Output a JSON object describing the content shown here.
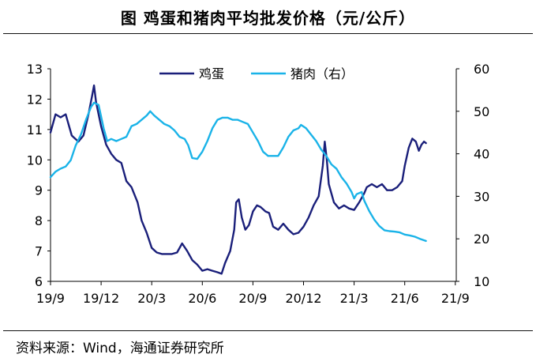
{
  "chart_data": {
    "type": "line",
    "title": "图  鸡蛋和猪肉平均批发价格（元/公斤）",
    "x_ticks": [
      "19/9",
      "19/12",
      "20/3",
      "20/6",
      "20/9",
      "20/12",
      "21/3",
      "21/6",
      "21/9"
    ],
    "y_left": {
      "ticks": [
        6,
        7,
        8,
        9,
        10,
        11,
        12,
        13
      ],
      "range": [
        6,
        13
      ]
    },
    "y_right": {
      "ticks": [
        10,
        20,
        30,
        40,
        50,
        60
      ],
      "range": [
        10,
        60
      ]
    },
    "legend_position": "top-center",
    "series": [
      {
        "name": "鸡蛋",
        "axis": "left",
        "color": "#1a1f7a",
        "points": [
          [
            0.0,
            10.9
          ],
          [
            0.1,
            11.5
          ],
          [
            0.2,
            11.4
          ],
          [
            0.3,
            11.5
          ],
          [
            0.42,
            10.8
          ],
          [
            0.55,
            10.6
          ],
          [
            0.65,
            10.8
          ],
          [
            0.75,
            11.5
          ],
          [
            0.82,
            12.1
          ],
          [
            0.86,
            12.45
          ],
          [
            0.9,
            11.9
          ],
          [
            1.0,
            11.1
          ],
          [
            1.1,
            10.5
          ],
          [
            1.2,
            10.2
          ],
          [
            1.3,
            10.0
          ],
          [
            1.4,
            9.9
          ],
          [
            1.5,
            9.3
          ],
          [
            1.6,
            9.1
          ],
          [
            1.72,
            8.6
          ],
          [
            1.8,
            8.0
          ],
          [
            1.9,
            7.6
          ],
          [
            2.0,
            7.1
          ],
          [
            2.1,
            6.95
          ],
          [
            2.2,
            6.9
          ],
          [
            2.3,
            6.9
          ],
          [
            2.4,
            6.9
          ],
          [
            2.5,
            6.95
          ],
          [
            2.6,
            7.25
          ],
          [
            2.7,
            7.0
          ],
          [
            2.8,
            6.7
          ],
          [
            2.9,
            6.55
          ],
          [
            3.0,
            6.35
          ],
          [
            3.1,
            6.4
          ],
          [
            3.2,
            6.35
          ],
          [
            3.3,
            6.3
          ],
          [
            3.38,
            6.25
          ],
          [
            3.45,
            6.6
          ],
          [
            3.55,
            7.0
          ],
          [
            3.63,
            7.7
          ],
          [
            3.67,
            8.6
          ],
          [
            3.72,
            8.7
          ],
          [
            3.78,
            8.1
          ],
          [
            3.85,
            7.7
          ],
          [
            3.92,
            7.85
          ],
          [
            4.0,
            8.3
          ],
          [
            4.08,
            8.5
          ],
          [
            4.15,
            8.45
          ],
          [
            4.25,
            8.3
          ],
          [
            4.32,
            8.25
          ],
          [
            4.4,
            7.8
          ],
          [
            4.5,
            7.7
          ],
          [
            4.6,
            7.9
          ],
          [
            4.7,
            7.7
          ],
          [
            4.8,
            7.55
          ],
          [
            4.9,
            7.6
          ],
          [
            5.0,
            7.8
          ],
          [
            5.1,
            8.1
          ],
          [
            5.2,
            8.5
          ],
          [
            5.3,
            8.8
          ],
          [
            5.38,
            9.8
          ],
          [
            5.42,
            10.6
          ],
          [
            5.46,
            10.0
          ],
          [
            5.5,
            9.2
          ],
          [
            5.6,
            8.6
          ],
          [
            5.7,
            8.4
          ],
          [
            5.8,
            8.5
          ],
          [
            5.9,
            8.4
          ],
          [
            6.0,
            8.35
          ],
          [
            6.1,
            8.6
          ],
          [
            6.2,
            8.9
          ],
          [
            6.25,
            9.1
          ],
          [
            6.35,
            9.2
          ],
          [
            6.45,
            9.1
          ],
          [
            6.55,
            9.2
          ],
          [
            6.65,
            9.0
          ],
          [
            6.75,
            9.0
          ],
          [
            6.85,
            9.1
          ],
          [
            6.95,
            9.3
          ],
          [
            7.0,
            9.8
          ],
          [
            7.08,
            10.4
          ],
          [
            7.15,
            10.7
          ],
          [
            7.22,
            10.6
          ],
          [
            7.28,
            10.3
          ],
          [
            7.33,
            10.5
          ],
          [
            7.38,
            10.6
          ],
          [
            7.42,
            10.55
          ]
        ]
      },
      {
        "name": "猪肉（右）",
        "axis": "right",
        "color": "#1ab3e8",
        "points": [
          [
            0.0,
            34.5
          ],
          [
            0.1,
            35.8
          ],
          [
            0.2,
            36.5
          ],
          [
            0.3,
            37.0
          ],
          [
            0.4,
            38.5
          ],
          [
            0.5,
            42.0
          ],
          [
            0.6,
            44.5
          ],
          [
            0.7,
            48.0
          ],
          [
            0.8,
            51.0
          ],
          [
            0.86,
            52.0
          ],
          [
            0.95,
            51.5
          ],
          [
            1.05,
            46.0
          ],
          [
            1.12,
            43.0
          ],
          [
            1.2,
            43.5
          ],
          [
            1.3,
            43.0
          ],
          [
            1.4,
            43.5
          ],
          [
            1.5,
            44.0
          ],
          [
            1.6,
            46.5
          ],
          [
            1.7,
            47.0
          ],
          [
            1.8,
            48.0
          ],
          [
            1.9,
            49.0
          ],
          [
            1.97,
            50.0
          ],
          [
            2.05,
            49.0
          ],
          [
            2.15,
            48.0
          ],
          [
            2.25,
            47.0
          ],
          [
            2.35,
            46.5
          ],
          [
            2.45,
            45.5
          ],
          [
            2.55,
            44.0
          ],
          [
            2.65,
            43.5
          ],
          [
            2.72,
            42.0
          ],
          [
            2.8,
            39.0
          ],
          [
            2.9,
            38.8
          ],
          [
            3.0,
            40.5
          ],
          [
            3.1,
            43.0
          ],
          [
            3.2,
            46.0
          ],
          [
            3.3,
            48.0
          ],
          [
            3.4,
            48.5
          ],
          [
            3.5,
            48.5
          ],
          [
            3.6,
            48.0
          ],
          [
            3.7,
            48.0
          ],
          [
            3.8,
            47.5
          ],
          [
            3.9,
            47.0
          ],
          [
            4.0,
            45.0
          ],
          [
            4.1,
            43.0
          ],
          [
            4.2,
            40.5
          ],
          [
            4.3,
            39.5
          ],
          [
            4.4,
            39.5
          ],
          [
            4.5,
            39.5
          ],
          [
            4.6,
            41.5
          ],
          [
            4.7,
            44.0
          ],
          [
            4.8,
            45.5
          ],
          [
            4.9,
            46.0
          ],
          [
            4.95,
            46.8
          ],
          [
            5.05,
            46.0
          ],
          [
            5.15,
            44.5
          ],
          [
            5.25,
            43.0
          ],
          [
            5.35,
            41.0
          ],
          [
            5.45,
            39.5
          ],
          [
            5.55,
            37.5
          ],
          [
            5.65,
            36.5
          ],
          [
            5.75,
            34.5
          ],
          [
            5.85,
            33.0
          ],
          [
            5.95,
            31.0
          ],
          [
            6.0,
            29.5
          ],
          [
            6.05,
            30.5
          ],
          [
            6.15,
            31.0
          ],
          [
            6.2,
            29.0
          ],
          [
            6.3,
            26.5
          ],
          [
            6.4,
            24.5
          ],
          [
            6.5,
            23.0
          ],
          [
            6.6,
            22.0
          ],
          [
            6.7,
            21.8
          ],
          [
            6.8,
            21.7
          ],
          [
            6.9,
            21.5
          ],
          [
            7.0,
            21.0
          ],
          [
            7.1,
            20.8
          ],
          [
            7.2,
            20.5
          ],
          [
            7.3,
            20.0
          ],
          [
            7.42,
            19.5
          ]
        ]
      }
    ]
  },
  "source": "资料来源：Wind，海通证券研究所"
}
